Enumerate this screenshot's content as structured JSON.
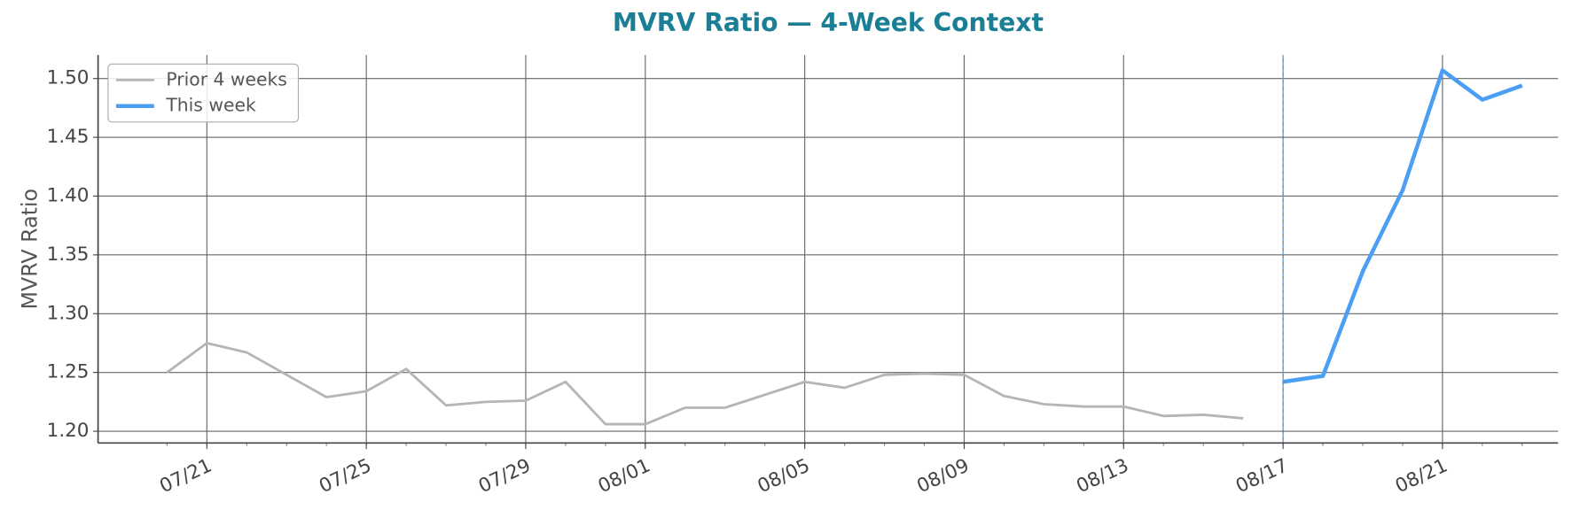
{
  "chart_data": {
    "type": "line",
    "title": "MVRV Ratio — 4-Week Context",
    "y_label": "MVRV Ratio",
    "x": [
      "07/20",
      "07/21",
      "07/22",
      "07/23",
      "07/24",
      "07/25",
      "07/26",
      "07/27",
      "07/28",
      "07/29",
      "07/30",
      "07/31",
      "08/01",
      "08/02",
      "08/03",
      "08/04",
      "08/05",
      "08/06",
      "08/07",
      "08/08",
      "08/09",
      "08/10",
      "08/11",
      "08/12",
      "08/13",
      "08/14",
      "08/15",
      "08/16",
      "08/17",
      "08/18",
      "08/19",
      "08/20",
      "08/21",
      "08/22",
      "08/23"
    ],
    "series": [
      {
        "name": "Prior 4 weeks",
        "color": "#b5b5b5",
        "width": 2.5,
        "values": [
          1.25,
          1.275,
          1.267,
          1.248,
          1.229,
          1.234,
          1.253,
          1.222,
          1.225,
          1.226,
          1.242,
          1.206,
          1.206,
          1.22,
          1.22,
          1.231,
          1.242,
          1.237,
          1.248,
          1.249,
          1.248,
          1.23,
          1.223,
          1.221,
          1.221,
          1.213,
          1.214,
          1.211,
          null,
          null,
          null,
          null,
          null,
          null,
          null
        ]
      },
      {
        "name": "This week",
        "color": "#4a9ff5",
        "width": 4,
        "values": [
          null,
          null,
          null,
          null,
          null,
          null,
          null,
          null,
          null,
          null,
          null,
          null,
          null,
          null,
          null,
          null,
          null,
          null,
          null,
          null,
          null,
          null,
          null,
          null,
          null,
          null,
          null,
          null,
          1.242,
          1.247,
          1.336,
          1.405,
          1.507,
          1.482,
          1.494
        ]
      }
    ],
    "xticks": [
      "07/21",
      "07/25",
      "07/29",
      "08/01",
      "08/05",
      "08/09",
      "08/13",
      "08/17",
      "08/21"
    ],
    "ylim": [
      1.19,
      1.52
    ],
    "yticks": [
      {
        "value": 1.2,
        "label": "1.20"
      },
      {
        "value": 1.25,
        "label": "1.25"
      },
      {
        "value": 1.3,
        "label": "1.30"
      },
      {
        "value": 1.35,
        "label": "1.35"
      },
      {
        "value": 1.4,
        "label": "1.40"
      },
      {
        "value": 1.45,
        "label": "1.45"
      },
      {
        "value": 1.5,
        "label": "1.50"
      }
    ],
    "grid": true,
    "legend": "upper-left"
  }
}
